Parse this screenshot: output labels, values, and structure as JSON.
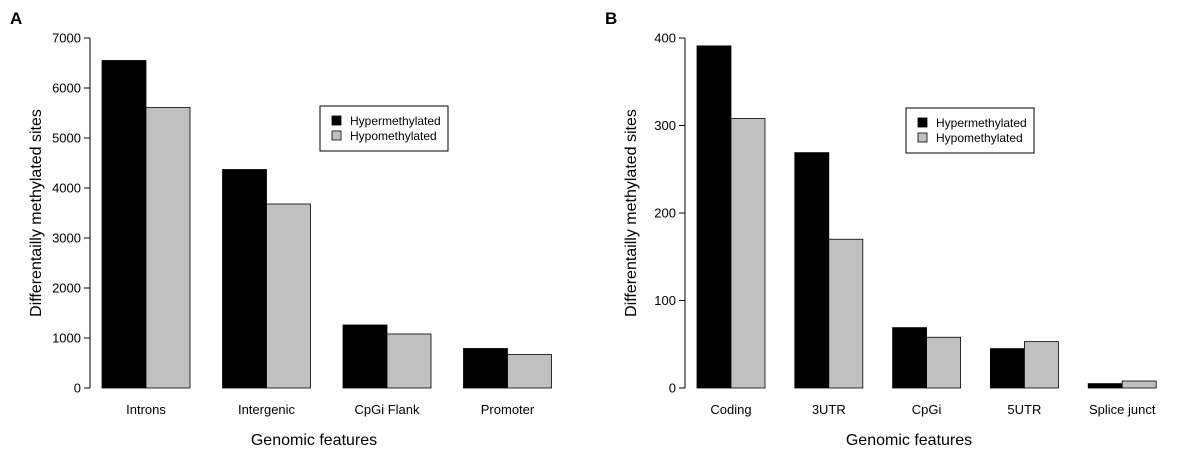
{
  "chart_data": [
    {
      "panel": "A",
      "type": "bar",
      "xlabel": "Genomic features",
      "ylabel": "Differentailly methylated sites",
      "ylim": [
        0,
        7000
      ],
      "yticks": [
        0,
        1000,
        2000,
        3000,
        4000,
        5000,
        6000,
        7000
      ],
      "categories": [
        "Introns",
        "Intergenic",
        "CpGi Flank",
        "Promoter"
      ],
      "series": [
        {
          "name": "Hypermethylated",
          "color": "#000000",
          "values": [
            6550,
            4370,
            1260,
            790
          ]
        },
        {
          "name": "Hypomethylated",
          "color": "#c0c0c0",
          "values": [
            5610,
            3680,
            1080,
            670
          ]
        }
      ],
      "legend_position": "top-right",
      "grid": false
    },
    {
      "panel": "B",
      "type": "bar",
      "xlabel": "Genomic features",
      "ylabel": "Differentailly methylated sites",
      "ylim": [
        0,
        400
      ],
      "yticks": [
        0,
        100,
        200,
        300,
        400
      ],
      "categories": [
        "Coding",
        "3UTR",
        "CpGi",
        "5UTR",
        "Splice junct"
      ],
      "series": [
        {
          "name": "Hypermethylated",
          "color": "#000000",
          "values": [
            391,
            269,
            69,
            45,
            5
          ]
        },
        {
          "name": "Hypomethylated",
          "color": "#c0c0c0",
          "values": [
            308,
            170,
            58,
            53,
            8
          ]
        }
      ],
      "legend_position": "top-right",
      "grid": false
    }
  ]
}
